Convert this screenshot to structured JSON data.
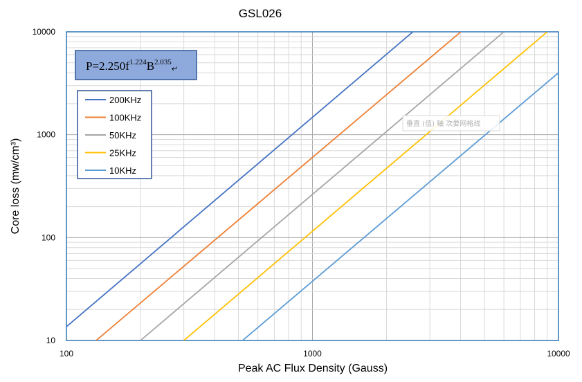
{
  "chart_data": {
    "type": "line",
    "title": "GSL026",
    "xlabel": "Peak AC Flux Density (Gauss)",
    "ylabel": "Core loss (mw/cm³)",
    "xscale": "log",
    "yscale": "log",
    "xlim": [
      100,
      10000
    ],
    "ylim": [
      10,
      10000
    ],
    "xticks": [
      100,
      1000,
      10000
    ],
    "xtick_labels": [
      "100",
      "1000",
      "10000"
    ],
    "yticks": [
      10,
      100,
      1000,
      10000
    ],
    "ytick_labels": [
      "10",
      "100",
      "1000",
      "10000"
    ],
    "grid": "major and minor",
    "legend_position": "upper-left",
    "formula": {
      "prefix": "P=2.250f",
      "f_exp": "1.224",
      "mid": "B",
      "b_exp": "2.035",
      "tail": "↵"
    },
    "watermark_text": "垂直 (值) 轴 次要网格线",
    "series": [
      {
        "name": "200KHz",
        "color": "#4472C4",
        "x": [
          100,
          2560
        ],
        "y": [
          13.6,
          10000
        ]
      },
      {
        "name": "100KHz",
        "color": "#ED7D31",
        "x": [
          132,
          4010
        ],
        "y": [
          10,
          10000
        ]
      },
      {
        "name": "50KHz",
        "color": "#A5A5A5",
        "x": [
          200,
          6000
        ],
        "y": [
          10,
          10000
        ]
      },
      {
        "name": "25KHz",
        "color": "#FFC000",
        "x": [
          300,
          9000
        ],
        "y": [
          10,
          10000
        ]
      },
      {
        "name": "10KHz",
        "color": "#5B9BD5",
        "x": [
          520,
          10000
        ],
        "y": [
          10,
          4000
        ]
      }
    ]
  }
}
